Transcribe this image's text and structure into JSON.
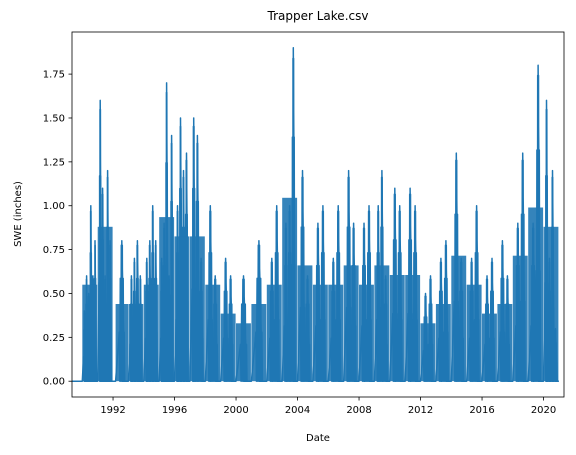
{
  "chart_data": {
    "type": "line",
    "title": "Trapper Lake.csv",
    "xlabel": "Date",
    "ylabel": "SWE (inches)",
    "xlim": [
      "1989-05-01",
      "2021-05-01"
    ],
    "ylim": [
      -0.09,
      1.99
    ],
    "x_ticks": [
      "1992",
      "1996",
      "2000",
      "2004",
      "2008",
      "2012",
      "2016",
      "2020"
    ],
    "y_ticks": [
      "0.00",
      "0.25",
      "0.50",
      "0.75",
      "1.00",
      "1.25",
      "1.50",
      "1.75"
    ],
    "grid": false,
    "legend": "none",
    "line_color": "#1f77b4",
    "series": [
      {
        "seasons": [
          {
            "start": "1990-01-01",
            "end": "1990-12-20",
            "peaks": [
              0.4,
              0.6,
              0.5,
              1.0,
              0.6,
              0.8
            ]
          },
          {
            "start": "1991-01-01",
            "end": "1991-12-20",
            "peaks": [
              1.6,
              1.1,
              0.6,
              1.2,
              0.8
            ]
          },
          {
            "start": "1992-03-01",
            "end": "1992-12-20",
            "peaks": [
              0.8
            ]
          },
          {
            "start": "1993-01-01",
            "end": "1993-12-20",
            "peaks": [
              0.6,
              0.7,
              0.8,
              0.6
            ]
          },
          {
            "start": "1994-01-01",
            "end": "1994-12-20",
            "peaks": [
              0.7,
              0.8,
              1.0,
              0.8
            ]
          },
          {
            "start": "1995-01-01",
            "end": "1995-12-20",
            "peaks": [
              0.7,
              0.9,
              1.7,
              0.6,
              1.4
            ]
          },
          {
            "start": "1996-01-01",
            "end": "1996-12-20",
            "peaks": [
              1.0,
              1.5,
              1.2,
              1.3
            ]
          },
          {
            "start": "1997-01-01",
            "end": "1997-12-20",
            "peaks": [
              1.5,
              1.4,
              0.7
            ]
          },
          {
            "start": "1998-01-01",
            "end": "1998-12-20",
            "peaks": [
              1.0,
              0.6
            ]
          },
          {
            "start": "1999-01-01",
            "end": "1999-12-20",
            "peaks": [
              0.7,
              0.6
            ]
          },
          {
            "start": "2000-01-01",
            "end": "2000-12-20",
            "peaks": [
              0.6
            ]
          },
          {
            "start": "2001-01-01",
            "end": "2001-12-20",
            "peaks": [
              0.8
            ]
          },
          {
            "start": "2002-01-01",
            "end": "2002-12-20",
            "peaks": [
              0.7,
              1.0
            ]
          },
          {
            "start": "2003-01-01",
            "end": "2003-12-20",
            "peaks": [
              0.9,
              1.0,
              1.9
            ]
          },
          {
            "start": "2004-01-01",
            "end": "2004-12-20",
            "peaks": [
              1.2,
              0.6
            ]
          },
          {
            "start": "2005-01-01",
            "end": "2005-12-20",
            "peaks": [
              0.9,
              1.0
            ]
          },
          {
            "start": "2006-01-01",
            "end": "2006-12-20",
            "peaks": [
              0.7,
              1.0
            ]
          },
          {
            "start": "2007-01-01",
            "end": "2007-12-20",
            "peaks": [
              1.2,
              0.9
            ]
          },
          {
            "start": "2008-01-01",
            "end": "2008-12-20",
            "peaks": [
              0.9,
              1.0
            ]
          },
          {
            "start": "2009-01-01",
            "end": "2009-12-20",
            "peaks": [
              1.0,
              1.2,
              0.6
            ]
          },
          {
            "start": "2010-01-01",
            "end": "2010-12-20",
            "peaks": [
              1.1,
              1.0
            ]
          },
          {
            "start": "2011-01-01",
            "end": "2011-12-20",
            "peaks": [
              1.1,
              1.0
            ]
          },
          {
            "start": "2012-01-01",
            "end": "2012-12-20",
            "peaks": [
              0.5,
              0.6
            ]
          },
          {
            "start": "2013-01-01",
            "end": "2013-12-20",
            "peaks": [
              0.7,
              0.8
            ]
          },
          {
            "start": "2014-01-01",
            "end": "2014-12-20",
            "peaks": [
              1.3,
              0.7
            ]
          },
          {
            "start": "2015-01-01",
            "end": "2015-12-20",
            "peaks": [
              0.7,
              1.0
            ]
          },
          {
            "start": "2016-01-01",
            "end": "2016-12-20",
            "peaks": [
              0.6,
              0.7
            ]
          },
          {
            "start": "2017-01-01",
            "end": "2017-12-20",
            "peaks": [
              0.8,
              0.6
            ]
          },
          {
            "start": "2018-01-01",
            "end": "2018-12-20",
            "peaks": [
              0.9,
              1.3
            ]
          },
          {
            "start": "2019-01-01",
            "end": "2019-12-20",
            "peaks": [
              0.9,
              1.8
            ]
          },
          {
            "start": "2020-01-01",
            "end": "2020-12-20",
            "peaks": [
              1.6,
              0.7,
              1.2,
              0.3
            ]
          }
        ]
      }
    ]
  }
}
